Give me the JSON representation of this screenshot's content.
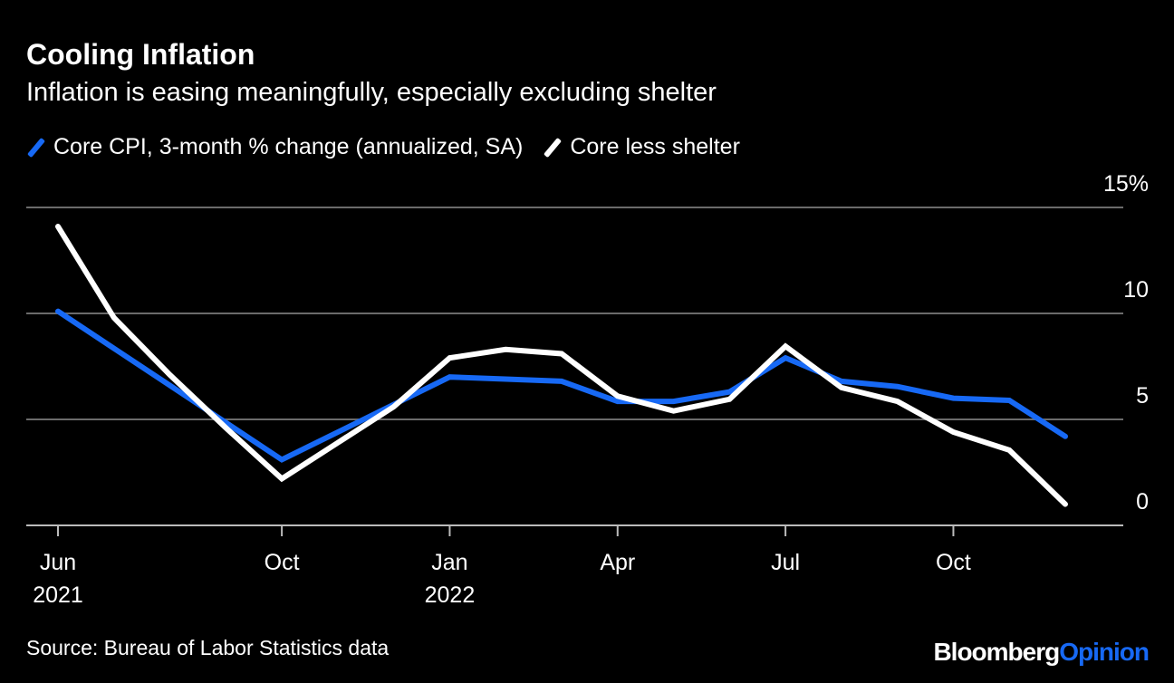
{
  "title": "Cooling Inflation",
  "subtitle": "Inflation is easing meaningfully, especially excluding shelter",
  "source": "Source: Bureau of Labor Statistics data",
  "logo": {
    "part1": "Bloomberg",
    "part2": "Opinion"
  },
  "colors": {
    "blue": "#1769f5",
    "white": "#ffffff",
    "grid": "#6b6b6b",
    "background": "#000000"
  },
  "chart_data": {
    "type": "line",
    "title": "Cooling Inflation",
    "subtitle": "Inflation is easing meaningfully, especially excluding shelter",
    "x": [
      "Jun 2021",
      "Jul 2021",
      "Aug 2021",
      "Sep 2021",
      "Oct 2021",
      "Nov 2021",
      "Dec 2021",
      "Jan 2022",
      "Feb 2022",
      "Mar 2022",
      "Apr 2022",
      "May 2022",
      "Jun 2022",
      "Jul 2022",
      "Aug 2022",
      "Sep 2022",
      "Oct 2022",
      "Nov 2022",
      "Dec 2022"
    ],
    "x_ticks": [
      {
        "index": 0,
        "label": "Jun",
        "sub": "2021"
      },
      {
        "index": 4,
        "label": "Oct",
        "sub": ""
      },
      {
        "index": 7,
        "label": "Jan",
        "sub": "2022"
      },
      {
        "index": 10,
        "label": "Apr",
        "sub": ""
      },
      {
        "index": 13,
        "label": "Jul",
        "sub": ""
      },
      {
        "index": 16,
        "label": "Oct",
        "sub": ""
      }
    ],
    "y_ticks": [
      {
        "value": 15,
        "label": "15%"
      },
      {
        "value": 10,
        "label": "10"
      },
      {
        "value": 5,
        "label": "5"
      },
      {
        "value": 0,
        "label": "0"
      }
    ],
    "ylim": [
      0,
      15
    ],
    "grid": true,
    "legend_position": "top-left",
    "series": [
      {
        "name": "Core CPI, 3-month % change (annualized, SA)",
        "color": "#1769f5",
        "values": [
          10.1,
          8.35,
          6.6,
          4.85,
          3.1,
          4.4,
          5.7,
          7.0,
          6.9,
          6.8,
          5.85,
          5.85,
          6.3,
          7.9,
          6.8,
          6.55,
          6.0,
          5.9,
          4.2
        ]
      },
      {
        "name": "Core less shelter",
        "color": "#ffffff",
        "values": [
          14.1,
          9.8,
          7.1,
          4.6,
          2.2,
          3.9,
          5.6,
          7.9,
          8.3,
          8.1,
          6.1,
          5.4,
          5.95,
          8.45,
          6.5,
          5.85,
          4.4,
          3.55,
          1.0
        ]
      }
    ]
  }
}
